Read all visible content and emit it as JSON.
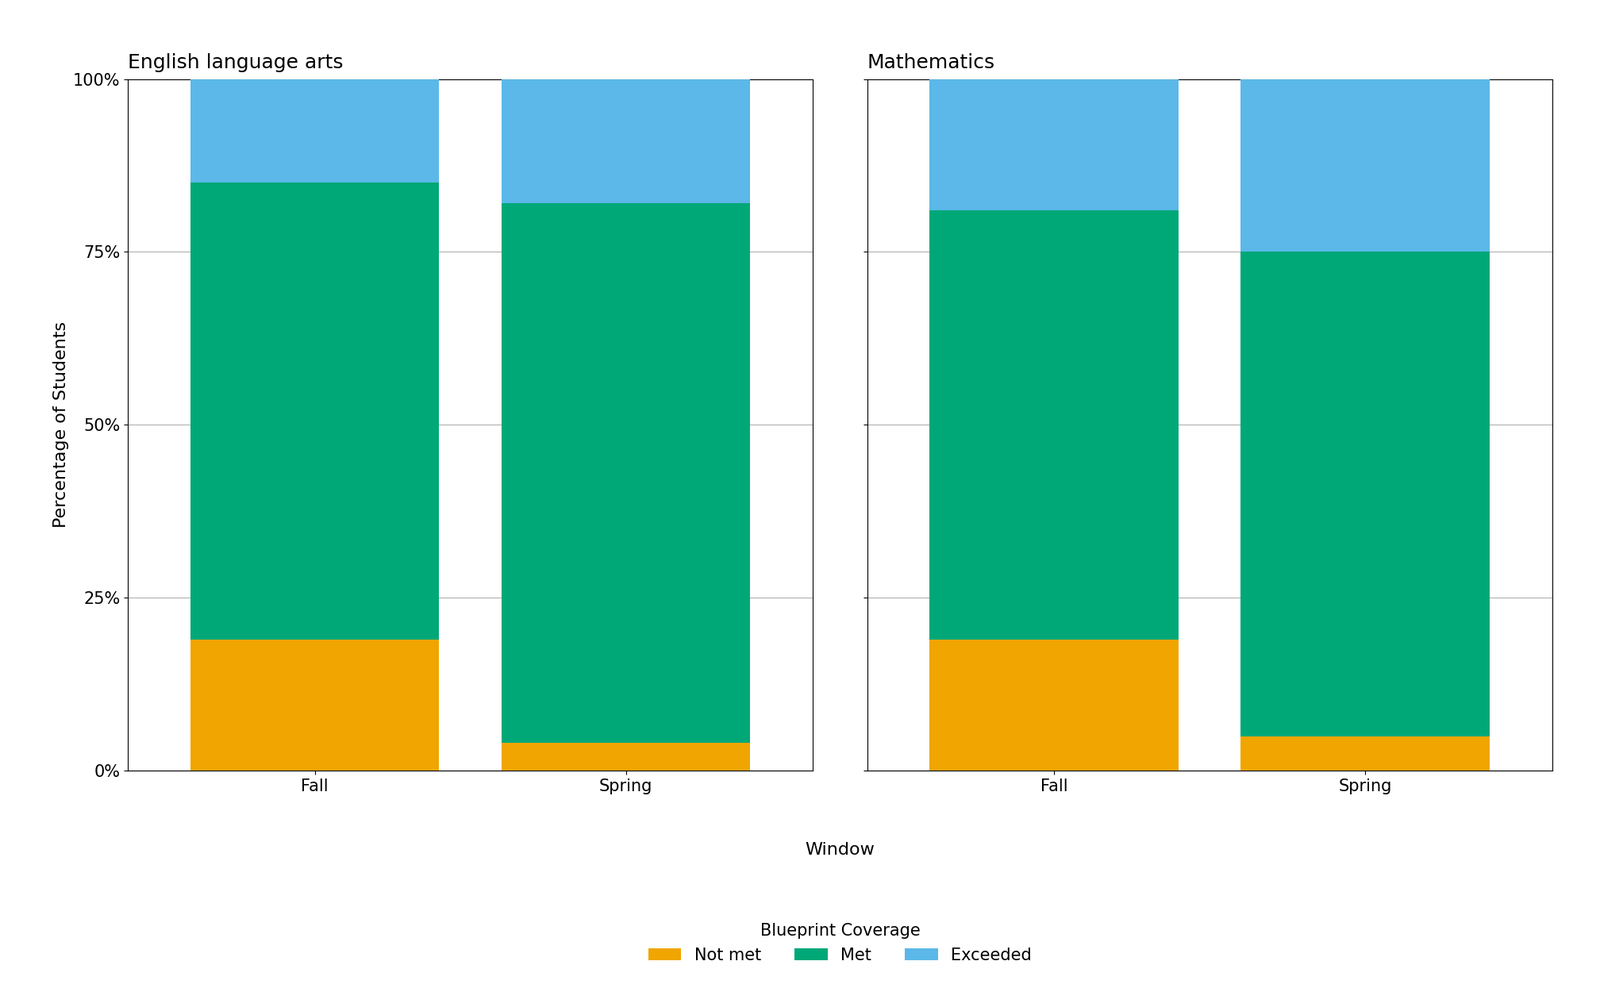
{
  "chart_data": [
    {
      "type": "bar",
      "title": "English language arts",
      "stacked": true,
      "categories": [
        "Fall",
        "Spring"
      ],
      "series": [
        {
          "name": "Not met",
          "color": "#F0A500",
          "values": [
            0.19,
            0.04
          ]
        },
        {
          "name": "Met",
          "color": "#00A878",
          "values": [
            0.66,
            0.78
          ]
        },
        {
          "name": "Exceeded",
          "color": "#5BB8E8",
          "values": [
            0.15,
            0.18
          ]
        }
      ],
      "y_label": "Percentage of Students",
      "ylim": [
        0,
        1.0
      ],
      "yticks": [
        {
          "value": 0,
          "label": "0%"
        },
        {
          "value": 0.25,
          "label": "25%"
        },
        {
          "value": 0.5,
          "label": "50%"
        },
        {
          "value": 0.75,
          "label": "75%"
        },
        {
          "value": 1.0,
          "label": "100%"
        }
      ],
      "grid": true
    },
    {
      "type": "bar",
      "title": "Mathematics",
      "stacked": true,
      "categories": [
        "Fall",
        "Spring"
      ],
      "series": [
        {
          "name": "Not met",
          "color": "#F0A500",
          "values": [
            0.19,
            0.05
          ]
        },
        {
          "name": "Met",
          "color": "#00A878",
          "values": [
            0.62,
            0.7
          ]
        },
        {
          "name": "Exceeded",
          "color": "#5BB8E8",
          "values": [
            0.19,
            0.25
          ]
        }
      ],
      "ylim": [
        0,
        1.0
      ],
      "yticks": [
        {
          "value": 0,
          "label": "0%"
        },
        {
          "value": 0.25,
          "label": "25%"
        },
        {
          "value": 0.5,
          "label": "50%"
        },
        {
          "value": 0.75,
          "label": "75%"
        },
        {
          "value": 1.0,
          "label": "100%"
        }
      ],
      "tick_labels": "x",
      "grid": true
    }
  ],
  "x_label": "Window",
  "legend": "lower center",
  "legend_title": "Blueprint Coverage"
}
